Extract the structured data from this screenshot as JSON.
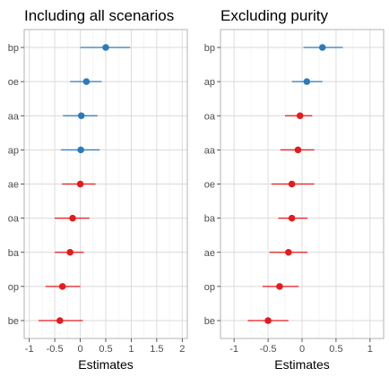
{
  "chart_data": [
    {
      "type": "scatter",
      "title": "Including all scenarios",
      "xlabel": "Estimates",
      "ylabel": "",
      "xlim": [
        -1.1,
        2.1
      ],
      "x_ticks": [
        "-1",
        "-0.5",
        "0",
        "0.5",
        "1",
        "1.5",
        "2"
      ],
      "grid": true,
      "categories": [
        "bp",
        "oe",
        "aa",
        "ap",
        "ae",
        "oa",
        "ba",
        "op",
        "be"
      ],
      "points": [
        {
          "label": "bp",
          "estimate": 0.5,
          "low": 0.0,
          "high": 0.98,
          "color": "#2b7bba"
        },
        {
          "label": "oe",
          "estimate": 0.12,
          "low": -0.2,
          "high": 0.42,
          "color": "#2b7bba"
        },
        {
          "label": "aa",
          "estimate": 0.02,
          "low": -0.34,
          "high": 0.34,
          "color": "#2b7bba"
        },
        {
          "label": "ap",
          "estimate": 0.01,
          "low": -0.38,
          "high": 0.38,
          "color": "#2b7bba"
        },
        {
          "label": "ae",
          "estimate": 0.0,
          "low": -0.36,
          "high": 0.3,
          "color": "#e41a1c"
        },
        {
          "label": "oa",
          "estimate": -0.15,
          "low": -0.5,
          "high": 0.18,
          "color": "#e41a1c"
        },
        {
          "label": "ba",
          "estimate": -0.2,
          "low": -0.5,
          "high": 0.07,
          "color": "#e41a1c"
        },
        {
          "label": "op",
          "estimate": -0.35,
          "low": -0.68,
          "high": 0.0,
          "color": "#e41a1c"
        },
        {
          "label": "be",
          "estimate": -0.4,
          "low": -0.82,
          "high": 0.05,
          "color": "#e41a1c"
        }
      ]
    },
    {
      "type": "scatter",
      "title": "Excluding purity",
      "xlabel": "Estimates",
      "ylabel": "",
      "xlim": [
        -1.2,
        1.2
      ],
      "x_ticks": [
        "-1",
        "-0.5",
        "0",
        "0.5",
        "1"
      ],
      "grid": true,
      "categories": [
        "bp",
        "ap",
        "oa",
        "aa",
        "oe",
        "ba",
        "ae",
        "op",
        "be"
      ],
      "points": [
        {
          "label": "bp",
          "estimate": 0.3,
          "low": 0.02,
          "high": 0.6,
          "color": "#2b7bba"
        },
        {
          "label": "ap",
          "estimate": 0.07,
          "low": -0.15,
          "high": 0.3,
          "color": "#2b7bba"
        },
        {
          "label": "oa",
          "estimate": -0.03,
          "low": -0.25,
          "high": 0.15,
          "color": "#e41a1c"
        },
        {
          "label": "aa",
          "estimate": -0.06,
          "low": -0.32,
          "high": 0.18,
          "color": "#e41a1c"
        },
        {
          "label": "oe",
          "estimate": -0.15,
          "low": -0.45,
          "high": 0.18,
          "color": "#e41a1c"
        },
        {
          "label": "ba",
          "estimate": -0.15,
          "low": -0.35,
          "high": 0.08,
          "color": "#e41a1c"
        },
        {
          "label": "ae",
          "estimate": -0.2,
          "low": -0.48,
          "high": 0.08,
          "color": "#e41a1c"
        },
        {
          "label": "op",
          "estimate": -0.33,
          "low": -0.58,
          "high": -0.05,
          "color": "#e41a1c"
        },
        {
          "label": "be",
          "estimate": -0.5,
          "low": -0.8,
          "high": -0.2,
          "color": "#e41a1c"
        }
      ]
    }
  ]
}
